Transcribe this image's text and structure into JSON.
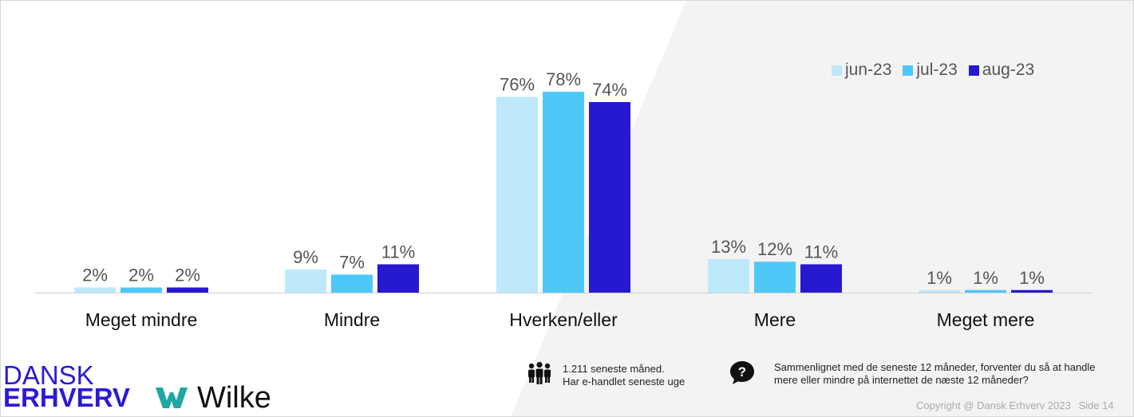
{
  "chart_data": {
    "type": "bar",
    "categories": [
      "Meget mindre",
      "Mindre",
      "Hverken/eller",
      "Mere",
      "Meget mere"
    ],
    "series": [
      {
        "name": "jun-23",
        "color": "#bde9fb",
        "values": [
          2,
          9,
          76,
          13,
          1
        ]
      },
      {
        "name": "jul-23",
        "color": "#4ec8f9",
        "values": [
          2,
          7,
          78,
          12,
          1
        ]
      },
      {
        "name": "aug-23",
        "color": "#2719cf",
        "values": [
          2,
          11,
          74,
          11,
          1
        ]
      }
    ],
    "value_suffix": "%",
    "ylim": [
      0,
      85
    ],
    "legend_position": "top-right",
    "grid": false
  },
  "branding": {
    "dansk": "DANSK",
    "erhverv": "ERHVERV",
    "wilke": "Wilke"
  },
  "sample": {
    "line1": "1.211 seneste måned.",
    "line2": "Har e-handlet seneste uge"
  },
  "question": {
    "line1": "Sammenlignet med de seneste 12 måneder, forventer du så at handle",
    "line2": "mere eller mindre på internettet de næste 12 måneder?"
  },
  "footer": {
    "copyright": "Copyright @ Dansk Erhverv 2023",
    "page": "Side  14"
  },
  "icons": {
    "sample": "people-icon",
    "question": "question-bubble-icon"
  }
}
